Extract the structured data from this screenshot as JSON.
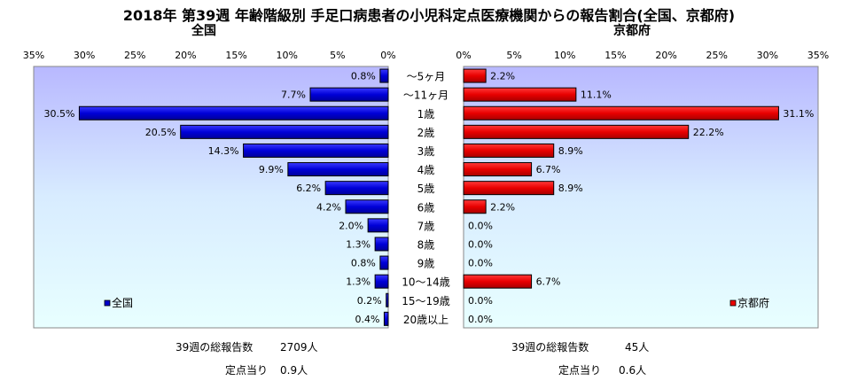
{
  "title": "2018年 第39週 年齢階級別 手足口病患者の小児科定点医療機関からの報告割合(全国、京都府)",
  "chart_data": [
    {
      "type": "bar",
      "title": "全国",
      "legend": "全国",
      "legend_position": "bottom-left",
      "orientation": "horizontal",
      "direction": "right-to-left",
      "color": "#0000cc",
      "xlim": [
        0,
        35
      ],
      "tick_labels": [
        "0%",
        "5%",
        "10%",
        "15%",
        "20%",
        "25%",
        "30%",
        "35%"
      ],
      "categories": [
        "～5ヶ月",
        "～11ヶ月",
        "1歳",
        "2歳",
        "3歳",
        "4歳",
        "5歳",
        "6歳",
        "7歳",
        "8歳",
        "9歳",
        "10～14歳",
        "15～19歳",
        "20歳以上"
      ],
      "values": [
        0.8,
        7.7,
        30.5,
        20.5,
        14.3,
        9.9,
        6.2,
        4.2,
        2.0,
        1.3,
        0.8,
        1.3,
        0.2,
        0.4
      ],
      "value_labels": [
        "0.8%",
        "7.7%",
        "30.5%",
        "20.5%",
        "14.3%",
        "9.9%",
        "6.2%",
        "4.2%",
        "2.0%",
        "1.3%",
        "0.8%",
        "1.3%",
        "0.2%",
        "0.4%"
      ]
    },
    {
      "type": "bar",
      "title": "京都府",
      "legend": "京都府",
      "legend_position": "bottom-right",
      "orientation": "horizontal",
      "direction": "left-to-right",
      "color": "#ee0000",
      "xlim": [
        0,
        35
      ],
      "tick_labels": [
        "0%",
        "5%",
        "10%",
        "15%",
        "20%",
        "25%",
        "30%",
        "35%"
      ],
      "categories": [
        "～5ヶ月",
        "～11ヶ月",
        "1歳",
        "2歳",
        "3歳",
        "4歳",
        "5歳",
        "6歳",
        "7歳",
        "8歳",
        "9歳",
        "10～14歳",
        "15～19歳",
        "20歳以上"
      ],
      "values": [
        2.2,
        11.1,
        31.1,
        22.2,
        8.9,
        6.7,
        8.9,
        2.2,
        0.0,
        0.0,
        0.0,
        6.7,
        0.0,
        0.0
      ],
      "value_labels": [
        "2.2%",
        "11.1%",
        "31.1%",
        "22.2%",
        "8.9%",
        "6.7%",
        "8.9%",
        "2.2%",
        "0.0%",
        "0.0%",
        "0.0%",
        "6.7%",
        "0.0%",
        "0.0%"
      ]
    }
  ],
  "summary": {
    "left": {
      "reports_label": "39週の総報告数",
      "reports_value": "2709人",
      "per_site_label": "定点当り",
      "per_site_value": "0.9人"
    },
    "right": {
      "reports_label": "39週の総報告数",
      "reports_value": "45人",
      "per_site_label": "定点当り",
      "per_site_value": "0.6人"
    }
  }
}
